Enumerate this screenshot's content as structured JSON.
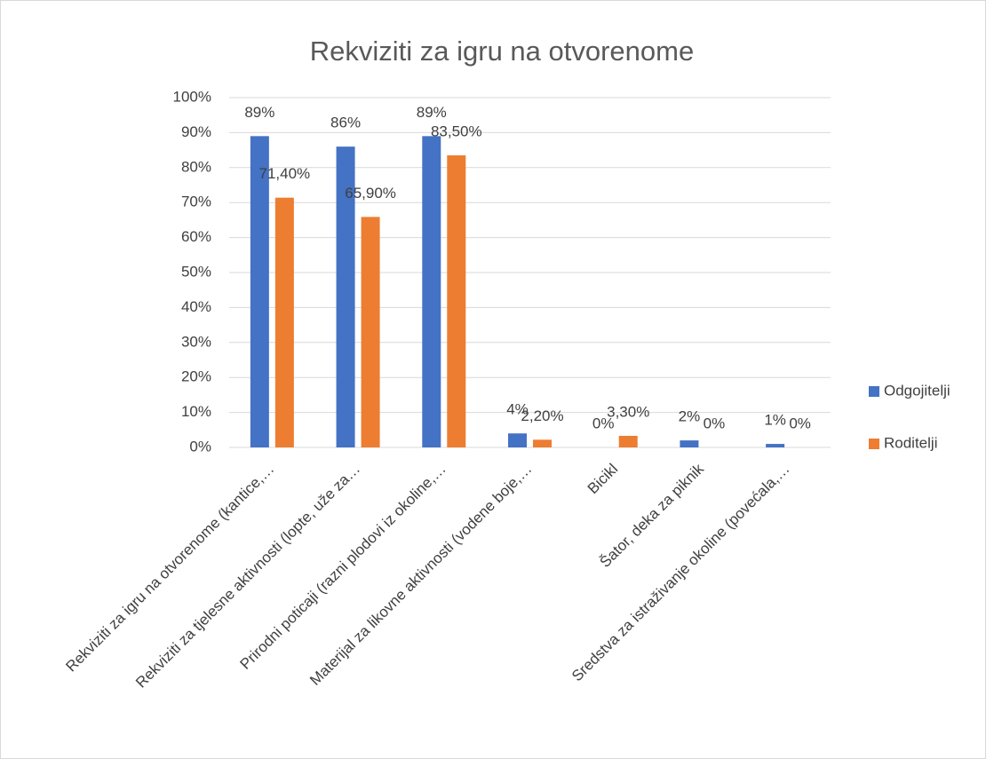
{
  "chart_data": {
    "type": "bar",
    "title": "Rekviziti za igru na otvorenome",
    "categories": [
      "Rekviziti za igru na otvorenome (kantice,…",
      "Rekviziti za tjelesne aktivnosti (lopte, uže za…",
      "Prirodni poticaji (razni plodovi iz okoline,…",
      "Materijal za likovne aktivnosti (vodene boje,…",
      "Bicikl",
      "Šator, deka za piknik",
      "Sredstva za istraživanje okoline (povećala,…"
    ],
    "series": [
      {
        "name": "Odgojitelji",
        "color": "#4472c4",
        "values": [
          89,
          86,
          89,
          4,
          0,
          2,
          1
        ],
        "value_labels": [
          "89%",
          "86%",
          "89%",
          "4%",
          "0%",
          "2%",
          "1%"
        ]
      },
      {
        "name": "Roditelji",
        "color": "#ed7d31",
        "values": [
          71.4,
          65.9,
          83.5,
          2.2,
          3.3,
          0,
          0
        ],
        "value_labels": [
          "71,40%",
          "65,90%",
          "83,50%",
          "2,20%",
          "3,30%",
          "0%",
          "0%"
        ]
      }
    ],
    "ylim": [
      0,
      100
    ],
    "yticks": [
      {
        "value": 0,
        "label": "0%"
      },
      {
        "value": 10,
        "label": "10%"
      },
      {
        "value": 20,
        "label": "20%"
      },
      {
        "value": 30,
        "label": "30%"
      },
      {
        "value": 40,
        "label": "40%"
      },
      {
        "value": 50,
        "label": "50%"
      },
      {
        "value": 60,
        "label": "60%"
      },
      {
        "value": 70,
        "label": "70%"
      },
      {
        "value": 80,
        "label": "80%"
      },
      {
        "value": 90,
        "label": "90%"
      },
      {
        "value": 100,
        "label": "100%"
      }
    ],
    "grid": true,
    "legend": "right"
  }
}
